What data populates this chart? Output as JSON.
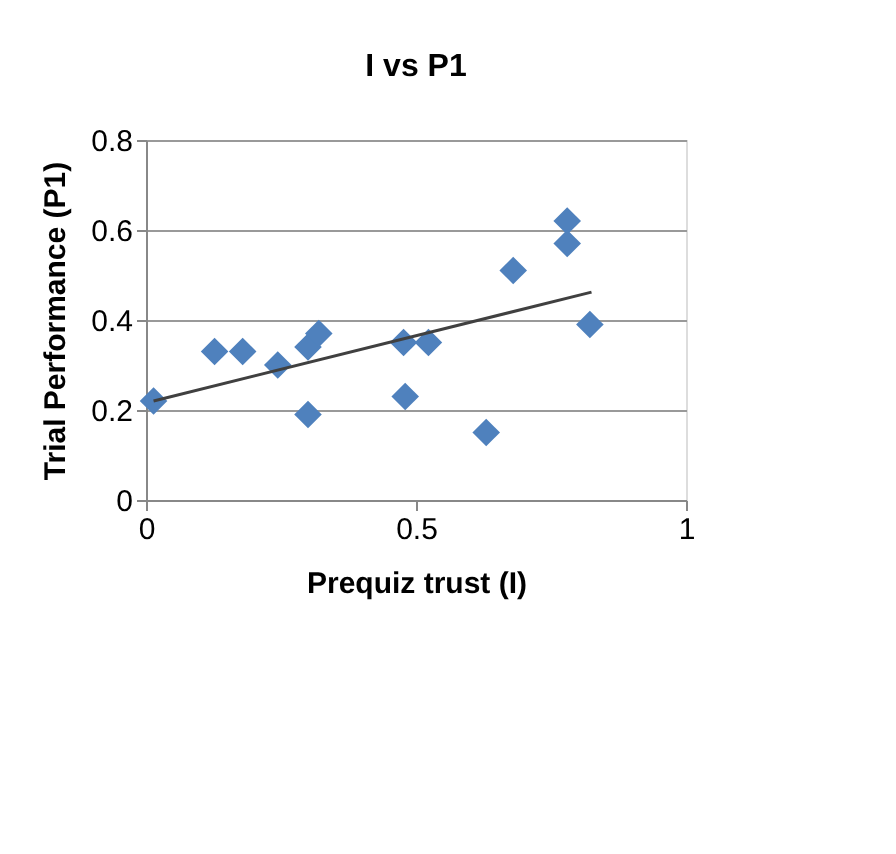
{
  "chart_data": {
    "type": "scatter",
    "title": "I vs P1",
    "xlabel": "Prequiz trust (I)",
    "ylabel": "Trial Performance (P1)",
    "xlim": [
      0,
      1
    ],
    "xticks": [
      0,
      0.5,
      1
    ],
    "ylim": [
      0,
      0.8
    ],
    "yticks": [
      0,
      0.2,
      0.4,
      0.6,
      0.8
    ],
    "grid": "y",
    "series": [
      {
        "color": "#4f81bd",
        "marker": "diamond",
        "x": [
          0.014,
          0.127,
          0.179,
          0.244,
          0.3,
          0.32,
          0.3,
          0.477,
          0.523,
          0.48,
          0.63,
          0.68,
          0.78,
          0.78,
          0.822
        ],
        "values": [
          0.22,
          0.33,
          0.33,
          0.3,
          0.34,
          0.37,
          0.19,
          0.35,
          0.35,
          0.23,
          0.15,
          0.51,
          0.62,
          0.57,
          0.39
        ]
      },
      {
        "type": "line",
        "color": "#404040",
        "line_style": "solid",
        "x": [
          0.014,
          0.825
        ],
        "values": [
          0.22,
          0.462
        ]
      }
    ]
  }
}
